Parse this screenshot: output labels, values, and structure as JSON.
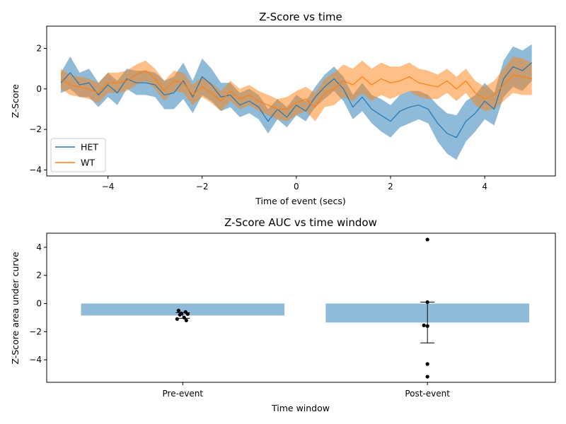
{
  "chart_data": [
    {
      "type": "line",
      "title": "Z-Score vs time",
      "xlabel": "Time of event (secs)",
      "ylabel": "Z-Score",
      "xlim": [
        -5.3,
        5.5
      ],
      "ylim": [
        -4.3,
        3.1
      ],
      "xticks": [
        -4,
        -2,
        0,
        2,
        4
      ],
      "xtick_labels": [
        "−4",
        "−2",
        "0",
        "2",
        "4"
      ],
      "yticks": [
        -4,
        -2,
        0,
        2
      ],
      "ytick_labels": [
        "−4",
        "−2",
        "0",
        "2"
      ],
      "legend_position": "lower-left",
      "series": [
        {
          "name": "HET",
          "color": "#1f77b4",
          "x": [
            -5.0,
            -4.8,
            -4.6,
            -4.4,
            -4.2,
            -4.0,
            -3.8,
            -3.6,
            -3.4,
            -3.2,
            -3.0,
            -2.8,
            -2.6,
            -2.4,
            -2.2,
            -2.0,
            -1.8,
            -1.6,
            -1.4,
            -1.2,
            -1.0,
            -0.8,
            -0.6,
            -0.4,
            -0.2,
            0.0,
            0.2,
            0.4,
            0.6,
            0.8,
            1.0,
            1.2,
            1.4,
            1.6,
            1.8,
            2.0,
            2.2,
            2.4,
            2.6,
            2.8,
            3.0,
            3.2,
            3.4,
            3.6,
            3.8,
            4.0,
            4.2,
            4.4,
            4.6,
            4.8,
            5.0
          ],
          "y": [
            0.3,
            0.8,
            0.2,
            0.3,
            -0.3,
            0.2,
            -0.2,
            0.5,
            0.3,
            0.3,
            0.2,
            -0.3,
            -0.2,
            0.4,
            -0.4,
            0.6,
            0.2,
            -0.4,
            -0.3,
            -0.8,
            -0.6,
            -0.9,
            -1.6,
            -1.0,
            -1.4,
            -0.8,
            -1.1,
            -0.4,
            0.1,
            0.5,
            0.0,
            -0.9,
            -0.4,
            -1.0,
            -1.3,
            -1.6,
            -1.1,
            -0.9,
            -0.8,
            -1.0,
            -1.7,
            -2.2,
            -2.4,
            -1.6,
            -1.2,
            -0.6,
            -1.0,
            0.5,
            1.1,
            0.9,
            1.3
          ],
          "band": [
            0.5,
            0.8,
            0.6,
            0.7,
            0.6,
            0.6,
            0.6,
            0.5,
            0.6,
            0.6,
            0.6,
            0.7,
            0.8,
            0.9,
            0.8,
            0.9,
            0.8,
            0.7,
            0.6,
            0.6,
            0.6,
            0.6,
            0.6,
            0.5,
            0.5,
            0.5,
            0.5,
            0.5,
            0.6,
            0.6,
            0.6,
            0.6,
            0.7,
            0.7,
            0.8,
            0.8,
            0.8,
            0.8,
            0.7,
            0.7,
            0.9,
            1.0,
            1.1,
            1.0,
            0.9,
            0.9,
            0.8,
            0.9,
            1.0,
            1.0,
            0.9
          ]
        },
        {
          "name": "WT",
          "color": "#ff7f0e",
          "x": [
            -5.0,
            -4.8,
            -4.6,
            -4.4,
            -4.2,
            -4.0,
            -3.8,
            -3.6,
            -3.4,
            -3.2,
            -3.0,
            -2.8,
            -2.6,
            -2.4,
            -2.2,
            -2.0,
            -1.8,
            -1.6,
            -1.4,
            -1.2,
            -1.0,
            -0.8,
            -0.6,
            -0.4,
            -0.2,
            0.0,
            0.2,
            0.4,
            0.6,
            0.8,
            1.0,
            1.2,
            1.4,
            1.6,
            1.8,
            2.0,
            2.2,
            2.4,
            2.6,
            2.8,
            3.0,
            3.2,
            3.4,
            3.6,
            3.8,
            4.0,
            4.2,
            4.4,
            4.6,
            4.8,
            5.0
          ],
          "y": [
            0.5,
            0.2,
            0.1,
            0.0,
            -0.2,
            0.3,
            0.3,
            0.4,
            0.7,
            0.9,
            0.5,
            -0.1,
            0.4,
            0.3,
            -0.3,
            0.1,
            -0.2,
            -0.6,
            -0.1,
            -0.5,
            -0.3,
            -0.6,
            -0.8,
            -1.0,
            -1.0,
            -0.7,
            -0.5,
            -0.9,
            -0.2,
            0.0,
            0.4,
            0.2,
            0.6,
            0.2,
            0.5,
            0.3,
            0.4,
            0.6,
            0.3,
            0.2,
            0.1,
            0.4,
            0.0,
            0.4,
            -0.2,
            -0.5,
            -0.3,
            0.2,
            0.7,
            0.6,
            0.5
          ],
          "band": [
            0.5,
            0.5,
            0.5,
            0.5,
            0.5,
            0.5,
            0.5,
            0.5,
            0.5,
            0.5,
            0.5,
            0.5,
            0.5,
            0.5,
            0.5,
            0.5,
            0.5,
            0.5,
            0.5,
            0.5,
            0.5,
            0.5,
            0.5,
            0.5,
            0.6,
            0.6,
            0.6,
            0.7,
            0.7,
            0.8,
            0.8,
            0.8,
            0.8,
            0.8,
            0.8,
            0.8,
            0.7,
            0.7,
            0.7,
            0.7,
            0.6,
            0.6,
            0.6,
            0.6,
            0.6,
            0.6,
            0.7,
            0.8,
            0.9,
            0.9,
            0.8
          ]
        }
      ]
    },
    {
      "type": "bar",
      "title": "Z-Score AUC vs time window",
      "xlabel": "Time window",
      "ylabel": "Z-Score area under curve",
      "categories": [
        "Pre-event",
        "Post-event"
      ],
      "values": [
        -0.85,
        -1.35
      ],
      "errors": [
        0.2,
        1.45
      ],
      "bar_color": "#1f77b4",
      "bar_alpha": 0.5,
      "ylim": [
        -5.6,
        5.0
      ],
      "yticks": [
        -4,
        -2,
        0,
        2,
        4
      ],
      "ytick_labels": [
        "−4",
        "−2",
        "0",
        "2",
        "4"
      ],
      "points": [
        [
          -0.5,
          -0.6,
          -0.7,
          -0.75,
          -0.8,
          -1.0,
          -1.1,
          -1.2
        ],
        [
          4.55,
          0.1,
          -1.55,
          -1.6,
          -4.3,
          -5.2
        ]
      ]
    }
  ]
}
